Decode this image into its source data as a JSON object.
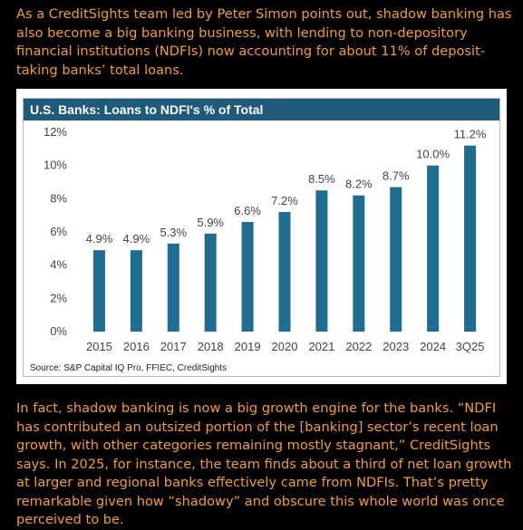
{
  "article": {
    "intro": "As a CreditSights team led by Peter Simon points out, shadow banking has also become a big banking business, with lending to non-depository financial institutions (NDFIs) now accounting for about 11% of deposit-taking banks’ total loans.",
    "outro": "In fact, shadow banking is now a big growth engine for the banks. “NDFI has contributed an outsized portion of the [banking] sector’s recent loan growth, with other categories remaining mostly stagnant,” CreditSights says. In 2025, for instance, the team finds about a third of net loan growth at larger and regional banks effectively came from NDFIs. That’s pretty remarkable given how “shadowy” and obscure this whole world was once perceived to be."
  },
  "colors": {
    "background": "#000000",
    "text_accent": "#f39c34",
    "title_bar": "#1f5a7a",
    "bar": "#1f6d91"
  },
  "chart_data": {
    "type": "bar",
    "title": "U.S. Banks: Loans to NDFI's % of Total",
    "source": "Source: S&P Capital IQ Pro, FFIEC, CreditSights",
    "categories": [
      "2015",
      "2016",
      "2017",
      "2018",
      "2019",
      "2020",
      "2021",
      "2022",
      "2023",
      "2024",
      "3Q25"
    ],
    "values": [
      4.9,
      4.9,
      5.3,
      5.9,
      6.6,
      7.2,
      8.5,
      8.2,
      8.7,
      10.0,
      11.2
    ],
    "data_labels": [
      "4.9%",
      "4.9%",
      "5.3%",
      "5.9%",
      "6.6%",
      "7.2%",
      "8.5%",
      "8.2%",
      "8.7%",
      "10.0%",
      "11.2%"
    ],
    "y_ticks": [
      0,
      2,
      4,
      6,
      8,
      10,
      12
    ],
    "y_tick_labels": [
      "0%",
      "2%",
      "4%",
      "6%",
      "8%",
      "10%",
      "12%"
    ],
    "ylim": [
      0,
      12
    ],
    "xlabel": "",
    "ylabel": "",
    "grid": false,
    "legend": "none"
  }
}
